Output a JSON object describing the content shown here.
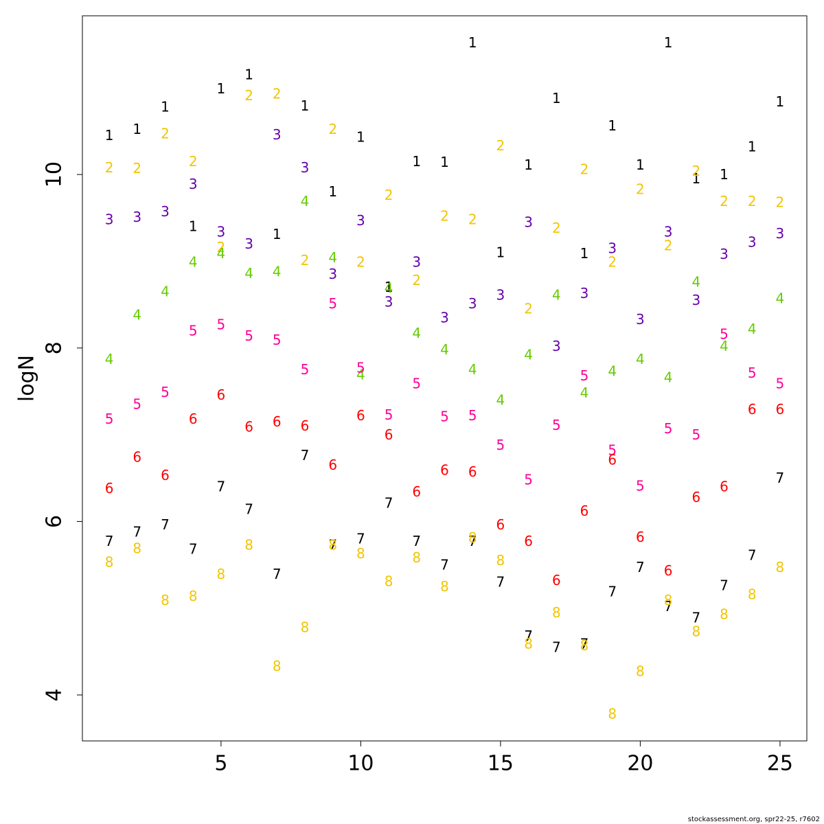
{
  "chart_data": {
    "type": "scatter",
    "y_label": "logN",
    "footer": "stockassessment.org, spr22-25, r7602",
    "x": [
      1,
      2,
      3,
      4,
      5,
      6,
      7,
      8,
      9,
      10,
      11,
      12,
      13,
      14,
      15,
      16,
      17,
      18,
      19,
      20,
      21,
      22,
      23,
      24,
      25
    ],
    "xlim": [
      0.04,
      25.96
    ],
    "ylim": [
      3.47,
      11.83
    ],
    "xticks": [
      5,
      10,
      15,
      20,
      25
    ],
    "yticks": [
      4,
      6,
      8,
      10
    ],
    "series": [
      {
        "name": "1",
        "color": "#000000",
        "values": [
          10.44,
          10.51,
          10.77,
          9.39,
          10.98,
          11.14,
          9.3,
          10.78,
          9.79,
          10.42,
          8.69,
          10.14,
          10.13,
          11.51,
          9.09,
          10.1,
          10.87,
          9.08,
          10.55,
          10.1,
          11.51,
          9.94,
          9.99,
          10.31,
          10.83
        ]
      },
      {
        "name": "2",
        "color": "#f2c500",
        "values": [
          10.07,
          10.06,
          10.46,
          10.14,
          9.15,
          10.9,
          10.92,
          9.0,
          10.51,
          8.98,
          9.75,
          8.77,
          9.51,
          9.47,
          10.32,
          8.44,
          9.37,
          10.05,
          8.98,
          9.82,
          9.17,
          10.03,
          9.68,
          9.68,
          9.67
        ]
      },
      {
        "name": "3",
        "color": "#6600aa",
        "values": [
          9.47,
          9.5,
          9.56,
          9.88,
          9.33,
          9.19,
          10.45,
          10.07,
          8.84,
          9.46,
          8.52,
          8.98,
          8.34,
          8.5,
          8.6,
          9.44,
          8.01,
          8.62,
          9.14,
          8.32,
          9.33,
          8.54,
          9.07,
          9.21,
          9.31
        ]
      },
      {
        "name": "4",
        "color": "#66cc00",
        "values": [
          7.86,
          8.37,
          8.64,
          8.98,
          9.08,
          8.85,
          8.87,
          9.68,
          9.03,
          7.68,
          8.68,
          8.16,
          7.97,
          7.74,
          7.39,
          7.91,
          8.6,
          7.47,
          7.72,
          7.86,
          7.65,
          8.75,
          8.01,
          8.21,
          8.56
        ]
      },
      {
        "name": "5",
        "color": "#ff0099",
        "values": [
          7.17,
          7.34,
          7.48,
          8.19,
          8.26,
          8.13,
          8.08,
          7.74,
          8.5,
          7.76,
          7.22,
          7.58,
          7.2,
          7.21,
          6.87,
          6.47,
          7.1,
          7.67,
          6.81,
          6.4,
          7.06,
          6.99,
          8.15,
          7.7,
          7.58
        ]
      },
      {
        "name": "6",
        "color": "#ff0000",
        "values": [
          6.37,
          6.73,
          6.52,
          7.17,
          7.45,
          7.08,
          7.14,
          7.09,
          6.64,
          7.21,
          6.99,
          6.33,
          6.58,
          6.56,
          5.95,
          5.76,
          5.31,
          6.11,
          6.7,
          5.81,
          5.42,
          6.27,
          6.39,
          7.28,
          7.28
        ]
      },
      {
        "name": "7",
        "color": "#000000",
        "values": [
          5.76,
          5.87,
          5.95,
          5.67,
          6.39,
          6.13,
          5.38,
          6.75,
          5.72,
          5.79,
          6.2,
          5.76,
          5.49,
          5.76,
          5.29,
          4.67,
          4.54,
          4.58,
          5.18,
          5.46,
          5.01,
          4.88,
          5.25,
          5.6,
          6.49
        ]
      },
      {
        "name": "8",
        "color": "#f2c500",
        "values": [
          5.52,
          5.68,
          5.08,
          5.13,
          5.38,
          5.72,
          4.32,
          4.77,
          5.72,
          5.62,
          5.3,
          5.57,
          5.24,
          5.8,
          5.54,
          4.58,
          4.94,
          4.56,
          3.77,
          4.26,
          5.08,
          4.72,
          4.92,
          5.15,
          5.46
        ]
      }
    ]
  }
}
